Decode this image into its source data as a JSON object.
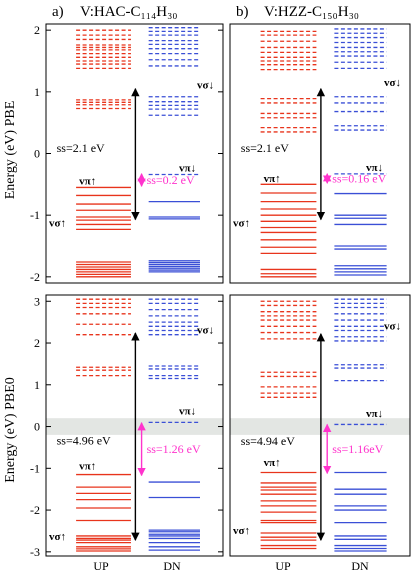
{
  "chart_data": {
    "type": "energy-level diagram",
    "columns": [
      "a)",
      "V:HAC-C₁₁₄H₃₀",
      "b)",
      "V:HZZ-C₁₅₀H₃₀"
    ],
    "row_labels": [
      "Energy (eV)  PBE",
      "Energy (eV)  PBE0"
    ],
    "x_labels": [
      "UP",
      "DN"
    ],
    "colors": {
      "up": "#e8341c",
      "dn": "#3a4fd6",
      "ss_small": "#ff33cc",
      "ss_big": "#000000",
      "band": "#e3e6e3"
    },
    "panels": [
      {
        "id": "a-pbe",
        "ylim": [
          -2.1,
          2.1
        ],
        "ticks": [
          -2,
          -1,
          0,
          1,
          2
        ],
        "up_occ": [
          -0.55,
          -0.68,
          -0.82,
          -0.92,
          -1.03,
          -1.08,
          -1.15,
          -1.23,
          -1.76,
          -1.8,
          -1.84,
          -1.88,
          -1.92,
          -1.96,
          -2.0
        ],
        "up_unocc": [
          0.73,
          0.79,
          0.83,
          0.87,
          1.38,
          1.45,
          1.5,
          1.56,
          1.62,
          1.68,
          1.72,
          1.76,
          1.85,
          1.92,
          2.0
        ],
        "dn_occ": [
          -0.78,
          -1.03,
          -1.06,
          -1.74,
          -1.77,
          -1.8,
          -1.83,
          -1.86,
          -1.89,
          -1.92
        ],
        "dn_unocc": [
          -0.34,
          0.62,
          0.72,
          0.78,
          0.84,
          0.92,
          1.42,
          1.52,
          1.62,
          1.7,
          1.77,
          1.83,
          1.92,
          1.98,
          2.04
        ],
        "labels": [
          {
            "text": "vπ↑",
            "y": -0.44
          },
          {
            "text": "vσ↑",
            "y": -1.12
          },
          {
            "text": "vσ↓",
            "y": 1.12
          },
          {
            "text": "vπ↓",
            "y": -0.23
          }
        ],
        "ss_big": {
          "text": "ss=2.1 eV",
          "from": -1.07,
          "to": 1.05
        },
        "ss_small": {
          "text": "ss=0.2 eV",
          "from": -0.53,
          "to": -0.33
        }
      },
      {
        "id": "b-pbe",
        "ylim": [
          -2.1,
          2.1
        ],
        "ticks": [],
        "up_occ": [
          -0.5,
          -0.64,
          -0.78,
          -0.9,
          -1.0,
          -1.1,
          -1.2,
          -1.28,
          -1.4,
          -1.52,
          -1.62,
          -1.88,
          -1.95,
          -2.0
        ],
        "up_unocc": [
          0.35,
          0.42,
          0.58,
          0.65,
          0.82,
          0.89,
          1.36,
          1.44,
          1.5,
          1.56,
          1.64,
          1.72,
          1.82,
          1.92,
          1.98
        ],
        "dn_occ": [
          -0.65,
          -1.0,
          -1.05,
          -1.15,
          -1.5,
          -1.55,
          -1.82,
          -1.87,
          -1.92,
          -1.97
        ],
        "dn_unocc": [
          -0.33,
          0.38,
          0.45,
          0.68,
          0.82,
          0.92,
          1.38,
          1.48,
          1.58,
          1.65,
          1.72,
          1.8,
          1.88,
          1.95,
          2.02
        ],
        "labels": [
          {
            "text": "vπ↑",
            "y": -0.4
          },
          {
            "text": "vσ↑",
            "y": -1.12
          },
          {
            "text": "vσ↓",
            "y": 1.16
          },
          {
            "text": "vπ↓",
            "y": -0.22
          }
        ],
        "ss_big": {
          "text": "ss=2.1 eV",
          "from": -1.07,
          "to": 1.05
        },
        "ss_small": {
          "text": "ss=0.16 eV",
          "from": -0.48,
          "to": -0.33
        }
      },
      {
        "id": "a-pbe0",
        "ylim": [
          -3.1,
          3.15
        ],
        "ticks": [
          -3,
          -2,
          -1,
          0,
          1,
          2,
          3
        ],
        "band": [
          -0.2,
          0.2
        ],
        "up_occ": [
          -1.15,
          -1.45,
          -1.6,
          -1.75,
          -1.95,
          -2.25,
          -2.62,
          -2.68,
          -2.72,
          -2.78,
          -2.88,
          -2.93,
          -2.98
        ],
        "up_unocc": [
          1.22,
          1.35,
          1.42,
          2.2,
          2.45,
          2.7,
          2.85,
          2.95,
          3.05
        ],
        "dn_occ": [
          -1.33,
          -1.7,
          -2.48,
          -2.52,
          -2.58,
          -2.62,
          -2.68,
          -2.78,
          -2.88,
          -2.96
        ],
        "dn_unocc": [
          0.1,
          1.15,
          1.22,
          1.38,
          1.45,
          2.2,
          2.3,
          2.4,
          2.5,
          2.65,
          2.8,
          2.95,
          3.05
        ],
        "labels": [
          {
            "text": "vπ↑",
            "y": -0.93
          },
          {
            "text": "vσ↑",
            "y": -2.62
          },
          {
            "text": "vσ↓",
            "y": 2.32
          },
          {
            "text": "vπ↓",
            "y": 0.38
          }
        ],
        "ss_big": {
          "text": "ss=4.96 eV",
          "from": -2.72,
          "to": 2.24
        },
        "ss_small": {
          "text": "ss=1.26 eV",
          "from": -1.17,
          "to": 0.09
        }
      },
      {
        "id": "b-pbe0",
        "ylim": [
          -3.1,
          3.15
        ],
        "ticks": [],
        "band": [
          -0.2,
          0.2
        ],
        "up_occ": [
          -1.1,
          -1.35,
          -1.45,
          -1.52,
          -1.62,
          -1.78,
          -1.9,
          -2.05,
          -2.25,
          -2.3,
          -2.55,
          -2.65,
          -2.72,
          -2.85,
          -2.92
        ],
        "up_unocc": [
          0.7,
          0.8,
          0.95,
          1.2,
          1.3,
          2.1,
          2.25,
          2.4,
          2.55,
          2.65,
          2.75,
          2.9,
          3.0
        ],
        "dn_occ": [
          -1.1,
          -1.5,
          -1.62,
          -1.9,
          -2.0,
          -2.3,
          -2.62,
          -2.7,
          -2.85,
          -2.92,
          -2.98
        ],
        "dn_unocc": [
          0.05,
          1.1,
          1.4,
          1.48,
          2.05,
          2.15,
          2.3,
          2.4,
          2.55,
          2.7,
          2.85,
          2.95,
          3.05
        ],
        "labels": [
          {
            "text": "vπ↑",
            "y": -0.85
          },
          {
            "text": "vσ↑",
            "y": -2.48
          },
          {
            "text": "vσ↓",
            "y": 2.42
          },
          {
            "text": "vπ↓",
            "y": 0.33
          }
        ],
        "ss_big": {
          "text": "ss=4.94 eV",
          "from": -2.72,
          "to": 2.22
        },
        "ss_small": {
          "text": "ss=1.16eV",
          "from": -1.12,
          "to": 0.05
        }
      }
    ]
  }
}
